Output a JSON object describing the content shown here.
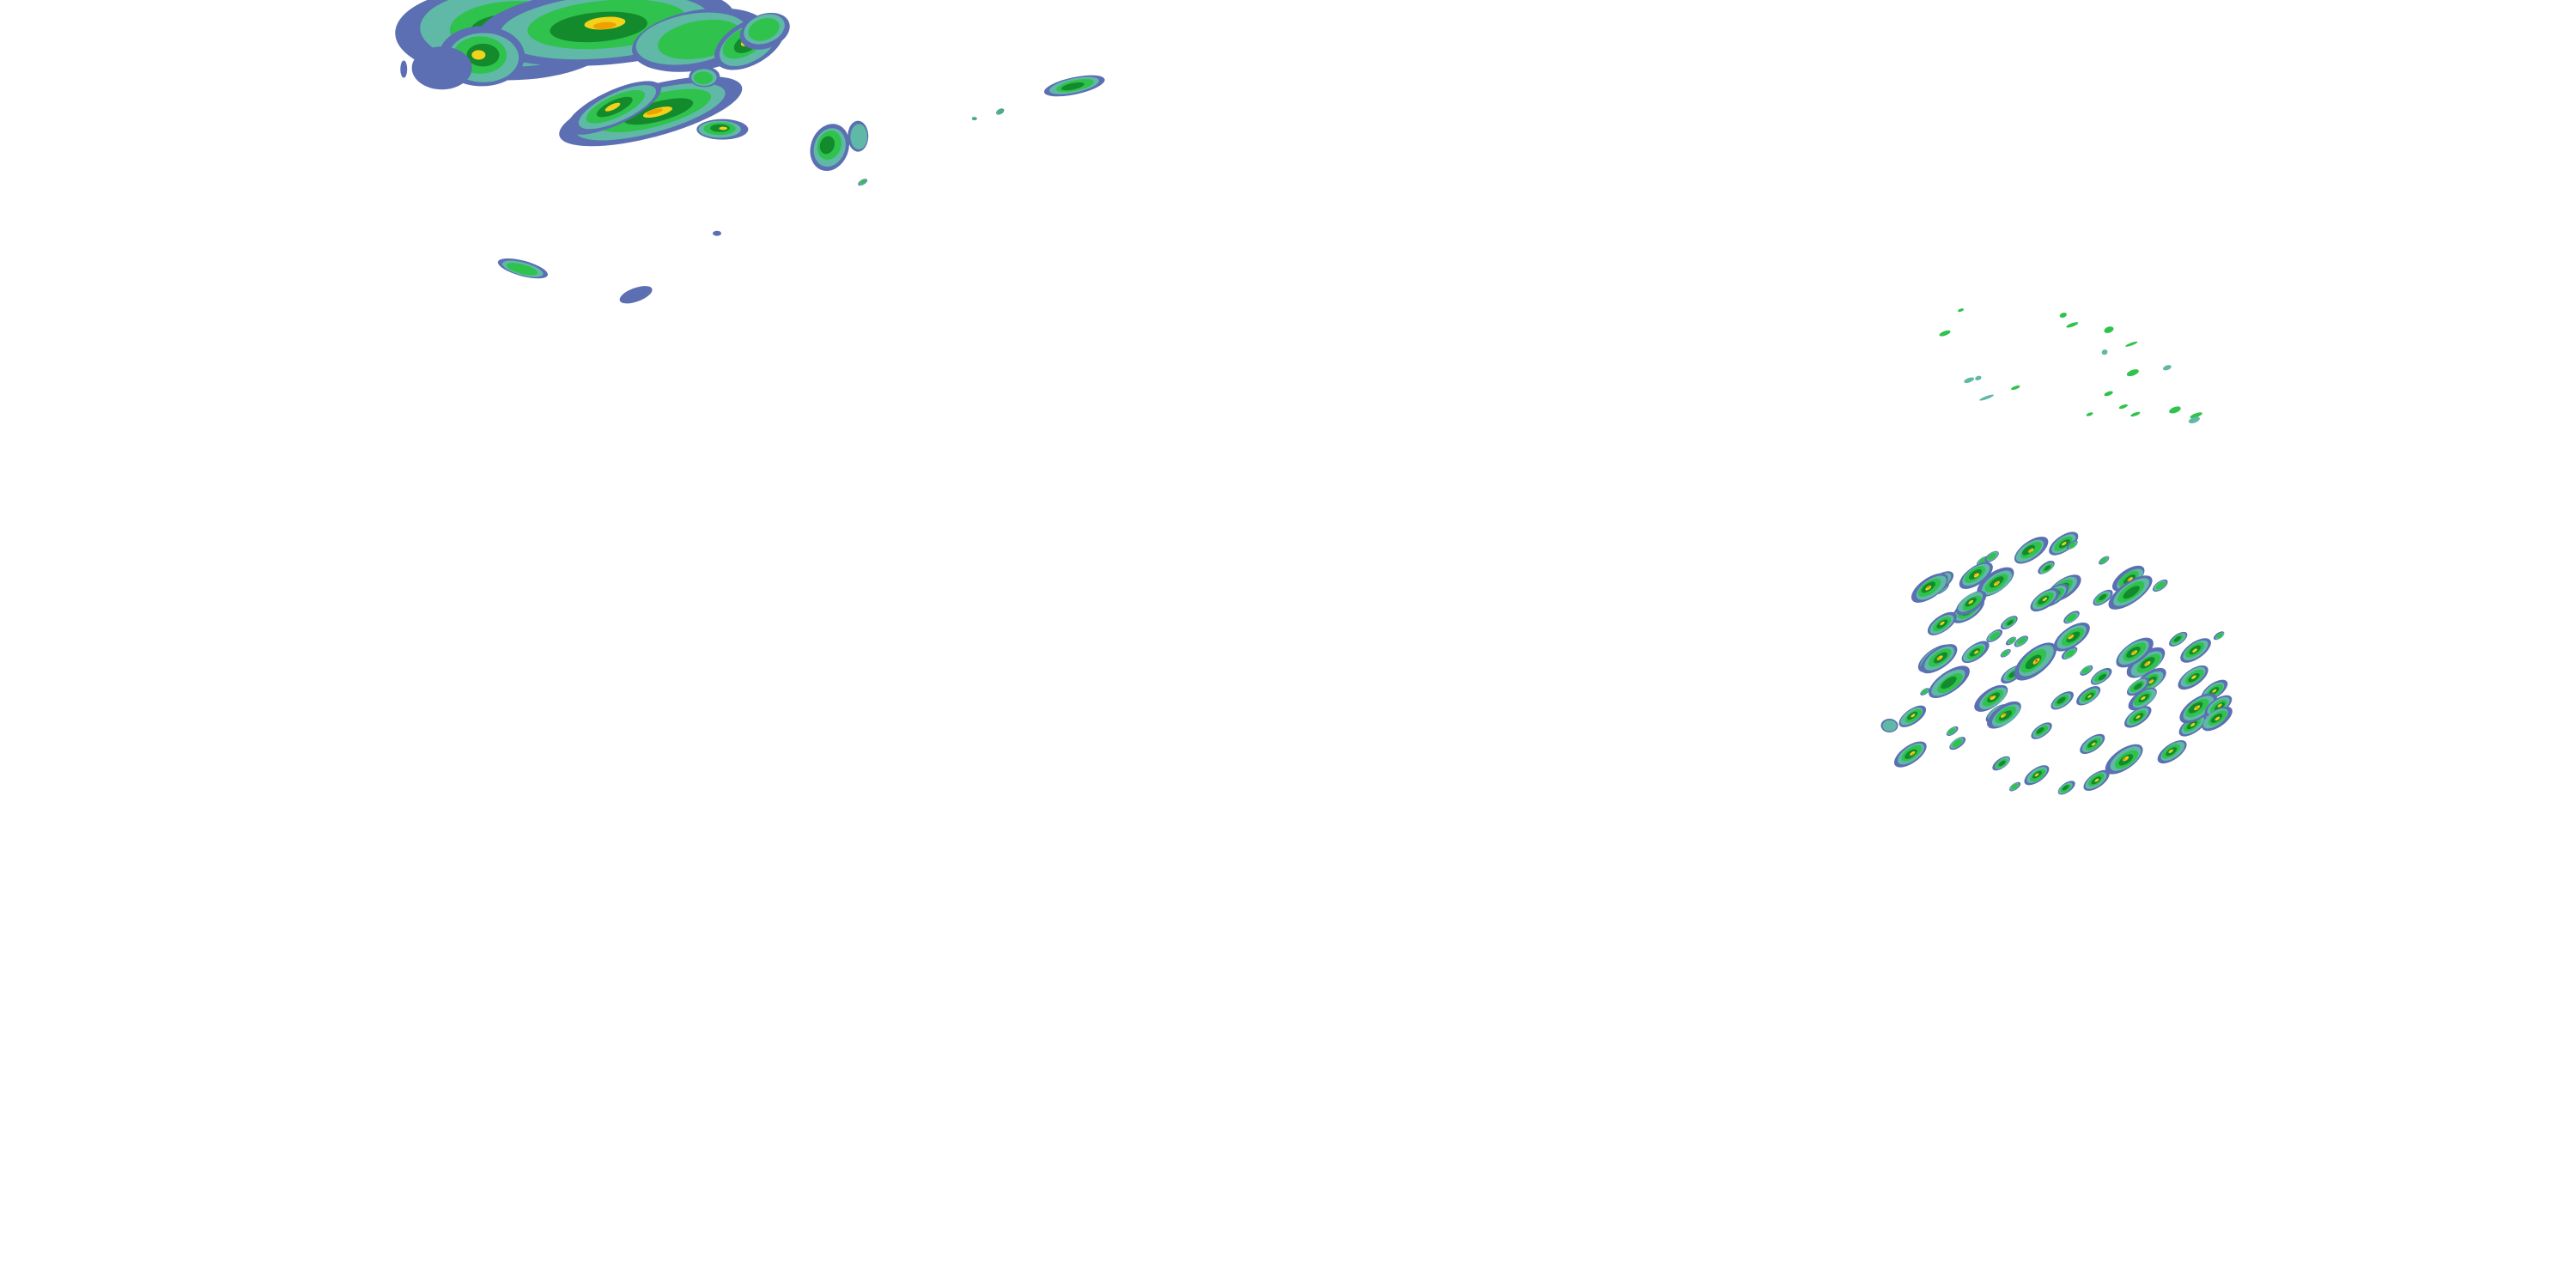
{
  "radar": {
    "reflectivity_palette": {
      "light": "#5b6fb2",
      "light_moderate": "#5fb9a6",
      "moderate": "#2fc24c",
      "moderate_heavy": "#138a2c",
      "heavy": "#f2d21a",
      "very_heavy": "#f0a100",
      "extreme": "#e2002c"
    }
  }
}
